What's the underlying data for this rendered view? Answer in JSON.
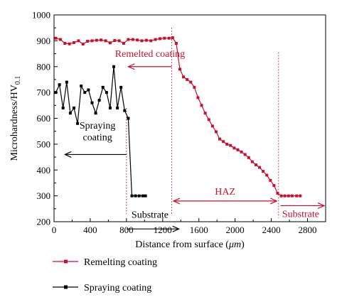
{
  "chart_data": {
    "type": "line",
    "xlabel": "Distance from surface (",
    "xlabel_unit": "μm",
    "xlabel_close": ")",
    "ylabel_main": "Microhardness/HV",
    "ylabel_sub": "0.1",
    "xlim": [
      0,
      3000
    ],
    "ylim": [
      200,
      1000
    ],
    "xticks": [
      0,
      400,
      800,
      1200,
      1600,
      2000,
      2400,
      2800
    ],
    "yticks": [
      200,
      300,
      400,
      500,
      600,
      700,
      800,
      900,
      1000
    ],
    "grid": false,
    "legend_position": "below-plot",
    "series": [
      {
        "name": "Remelting coating",
        "color": "#c8102e",
        "x": [
          20,
          70,
          120,
          170,
          220,
          270,
          320,
          370,
          420,
          470,
          520,
          570,
          620,
          670,
          720,
          770,
          820,
          870,
          920,
          970,
          1020,
          1070,
          1120,
          1170,
          1220,
          1270,
          1310,
          1350,
          1390,
          1430,
          1470,
          1510,
          1550,
          1590,
          1630,
          1670,
          1710,
          1750,
          1790,
          1830,
          1870,
          1910,
          1950,
          1990,
          2030,
          2070,
          2110,
          2150,
          2190,
          2230,
          2270,
          2310,
          2350,
          2390,
          2430,
          2470,
          2510,
          2550,
          2590,
          2630,
          2680,
          2720
        ],
        "y": [
          910,
          905,
          890,
          888,
          893,
          900,
          887,
          898,
          900,
          902,
          903,
          900,
          892,
          901,
          900,
          890,
          905,
          905,
          903,
          900,
          902,
          900,
          905,
          908,
          910,
          910,
          912,
          890,
          790,
          760,
          750,
          740,
          720,
          680,
          650,
          620,
          595,
          570,
          548,
          520,
          510,
          500,
          495,
          485,
          478,
          470,
          460,
          448,
          432,
          420,
          410,
          395,
          380,
          360,
          340,
          310,
          300,
          300,
          300,
          300,
          300,
          300
        ]
      },
      {
        "name": "Spraying coating",
        "color": "#000000",
        "x": [
          20,
          60,
          100,
          140,
          180,
          220,
          260,
          300,
          340,
          380,
          420,
          460,
          500,
          540,
          580,
          620,
          660,
          700,
          740,
          780,
          820,
          860,
          900,
          940,
          980,
          1010
        ],
        "y": [
          700,
          730,
          640,
          740,
          620,
          640,
          580,
          725,
          700,
          710,
          660,
          620,
          670,
          720,
          700,
          640,
          800,
          640,
          720,
          630,
          600,
          300,
          300,
          300,
          300,
          300
        ]
      }
    ],
    "annotations": {
      "remelted_coating": "Remelted coating",
      "spraying_coating_line1": "Spraying",
      "spraying_coating_line2": "coating",
      "haz": "HAZ",
      "substrate_left": "Substrate",
      "substrate_right": "Substrate"
    },
    "reference_lines_x": [
      800,
      1300,
      2480
    ]
  }
}
